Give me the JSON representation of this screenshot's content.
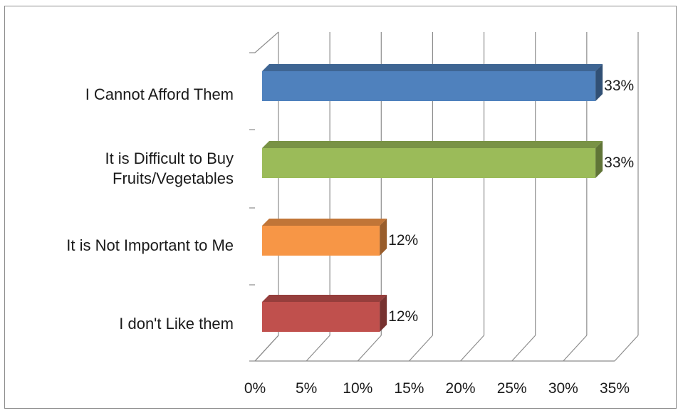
{
  "chart_data": {
    "type": "bar",
    "orientation": "horizontal",
    "three_d": true,
    "categories": [
      [
        "I Cannot Afford Them"
      ],
      [
        "It is Difficult to Buy",
        "Fruits/Vegetables"
      ],
      [
        "It is Not Important to Me"
      ],
      [
        "I don't Like them"
      ]
    ],
    "values": [
      33,
      33,
      12,
      12
    ],
    "data_labels": [
      "33%",
      "33%",
      "12%",
      "12%"
    ],
    "colors": [
      "#4f81bd",
      "#9bbb59",
      "#f79646",
      "#c0504d"
    ],
    "x_ticks": [
      "0%",
      "5%",
      "10%",
      "15%",
      "20%",
      "25%",
      "30%",
      "35%"
    ],
    "xlim": [
      0,
      35
    ],
    "grid": true,
    "legend": "none"
  }
}
